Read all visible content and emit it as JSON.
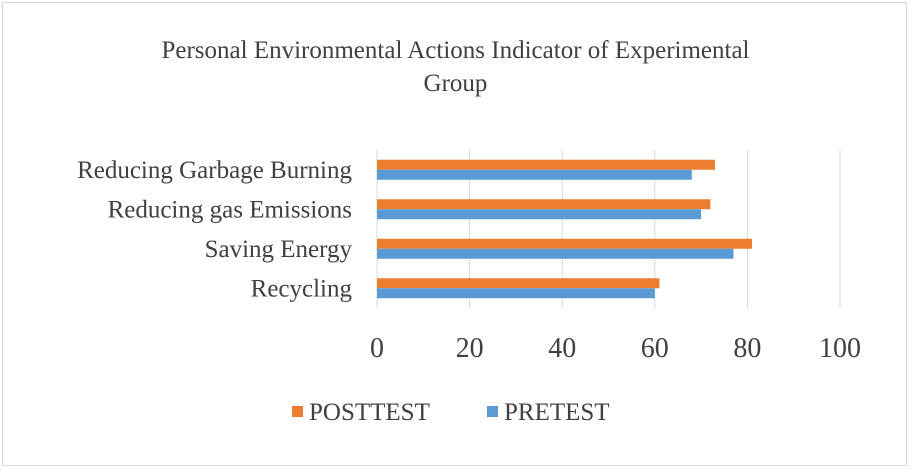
{
  "chart_data": {
    "type": "bar",
    "orientation": "horizontal",
    "title_lines": [
      "Personal Environmental Actions Indicator of Experimental",
      "Group"
    ],
    "categories": [
      "Reducing Garbage Burning",
      "Reducing gas Emissions",
      "Saving Energy",
      "Recycling"
    ],
    "series": [
      {
        "name": "POSTTEST",
        "color": "#ed7d31",
        "values": [
          73,
          72,
          81,
          61
        ]
      },
      {
        "name": "PRETEST",
        "color": "#5b9bd5",
        "values": [
          68,
          70,
          77,
          60
        ]
      }
    ],
    "xlim": [
      0,
      100
    ],
    "xticks": [
      0,
      20,
      40,
      60,
      80,
      100
    ],
    "xtick_labels": [
      "0",
      "20",
      "40",
      "60",
      "80",
      "100"
    ],
    "grid": true,
    "legend_position": "bottom",
    "legend_order": [
      "POSTTEST",
      "PRETEST"
    ]
  }
}
